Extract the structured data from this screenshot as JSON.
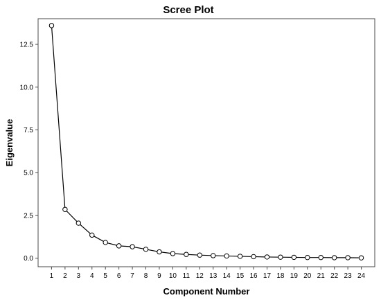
{
  "chart_data": {
    "type": "line",
    "title": "Scree Plot",
    "xlabel": "Component Number",
    "ylabel": "Eigenvalue",
    "x": [
      1,
      2,
      3,
      4,
      5,
      6,
      7,
      8,
      9,
      10,
      11,
      12,
      13,
      14,
      15,
      16,
      17,
      18,
      19,
      20,
      21,
      22,
      23,
      24
    ],
    "y": [
      13.6,
      2.85,
      2.05,
      1.35,
      0.92,
      0.72,
      0.67,
      0.52,
      0.37,
      0.27,
      0.22,
      0.18,
      0.15,
      0.13,
      0.11,
      0.09,
      0.07,
      0.06,
      0.05,
      0.04,
      0.04,
      0.03,
      0.03,
      0.02
    ],
    "x_ticks": [
      "1",
      "2",
      "3",
      "4",
      "5",
      "6",
      "7",
      "8",
      "9",
      "10",
      "11",
      "12",
      "13",
      "14",
      "15",
      "16",
      "17",
      "18",
      "19",
      "20",
      "21",
      "22",
      "23",
      "24"
    ],
    "y_ticks": [
      {
        "value": 0.0,
        "label": "0.0"
      },
      {
        "value": 2.5,
        "label": "2.5"
      },
      {
        "value": 5.0,
        "label": "5.0"
      },
      {
        "value": 7.5,
        "label": "7.5"
      },
      {
        "value": 10.0,
        "label": "10.0"
      },
      {
        "value": 12.5,
        "label": "12.5"
      }
    ],
    "xlim": [
      0,
      25
    ],
    "ylim": [
      -0.5,
      14.0
    ],
    "grid": false,
    "marker": "open-circle",
    "line_color": "#000000"
  }
}
